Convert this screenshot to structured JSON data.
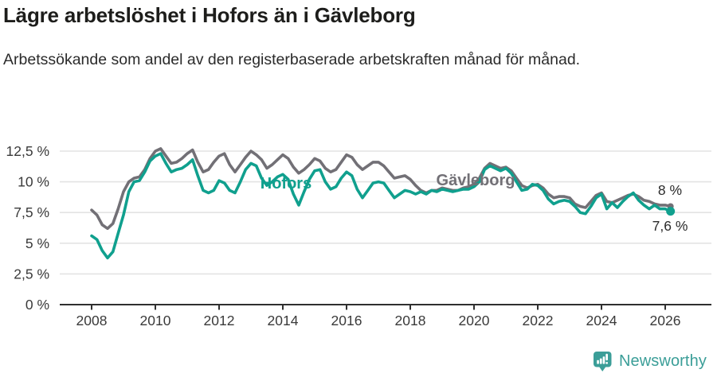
{
  "header": {
    "title": "Lägre arbetslöshet i Hofors än i Gävleborg",
    "subtitle": "Arbetssökande som andel av den registerbaserade arbetskraften månad för månad."
  },
  "colors": {
    "hofors": "#10a08e",
    "gavleborg": "#727076",
    "grid": "#e3e3e3",
    "axis": "#2f2f2f",
    "tick_text": "#3a3a3a",
    "annotation_dark": "#2b2b2b",
    "logo": "#3b9e98"
  },
  "chart_data": {
    "type": "line",
    "title": "Lägre arbetslöshet i Hofors än i Gävleborg",
    "xlabel": "",
    "ylabel": "",
    "unit": "%",
    "x_start_year": 2008,
    "x_step_years": 0.166667,
    "x_ticks": [
      2008,
      2010,
      2012,
      2014,
      2016,
      2018,
      2020,
      2022,
      2024,
      2026
    ],
    "y_ticks": [
      {
        "value": 0,
        "label": "0 %"
      },
      {
        "value": 2.5,
        "label": "2,5 %"
      },
      {
        "value": 5,
        "label": "5 %"
      },
      {
        "value": 7.5,
        "label": "7,5 %"
      },
      {
        "value": 10,
        "label": "10 %"
      },
      {
        "value": 12.5,
        "label": "12,5 %"
      }
    ],
    "ylim": [
      0,
      13.2
    ],
    "grid": true,
    "legend_position": "inline-labels",
    "series": [
      {
        "name": "Gävleborg",
        "color_key": "gavleborg",
        "end_label": "8 %",
        "end_dot_radius": 4,
        "values": [
          7.7,
          7.3,
          6.5,
          6.2,
          6.6,
          7.8,
          9.2,
          10.0,
          10.3,
          10.4,
          11.0,
          11.9,
          12.5,
          12.7,
          12.1,
          11.5,
          11.6,
          11.9,
          12.3,
          12.6,
          11.6,
          10.8,
          11.0,
          11.6,
          12.1,
          12.3,
          11.4,
          10.8,
          11.4,
          12.0,
          12.5,
          12.2,
          11.8,
          11.1,
          11.4,
          11.8,
          12.2,
          11.9,
          11.2,
          10.7,
          11.0,
          11.4,
          11.9,
          11.7,
          11.1,
          10.8,
          11.0,
          11.6,
          12.2,
          12.0,
          11.4,
          11.0,
          11.3,
          11.6,
          11.6,
          11.3,
          10.8,
          10.3,
          10.4,
          10.5,
          10.2,
          9.7,
          9.3,
          9.1,
          9.3,
          9.3,
          9.5,
          9.4,
          9.3,
          9.3,
          9.5,
          9.6,
          9.8,
          10.3,
          11.1,
          11.5,
          11.3,
          11.1,
          11.2,
          10.9,
          10.3,
          9.7,
          9.5,
          9.7,
          9.8,
          9.5,
          9.0,
          8.7,
          8.8,
          8.8,
          8.7,
          8.2,
          8.0,
          7.9,
          8.4,
          8.9,
          9.1,
          8.4,
          8.3,
          8.5,
          8.7,
          8.9,
          9.0,
          8.8,
          8.5,
          8.4,
          8.2,
          8.1,
          8.1,
          8.0
        ]
      },
      {
        "name": "Hofors",
        "color_key": "hofors",
        "end_label": "7,6 %",
        "end_dot_radius": 5.5,
        "values": [
          5.6,
          5.3,
          4.4,
          3.8,
          4.3,
          5.8,
          7.3,
          9.2,
          10.0,
          10.1,
          10.8,
          11.7,
          12.1,
          12.3,
          11.5,
          10.8,
          11.0,
          11.1,
          11.4,
          11.8,
          10.5,
          9.3,
          9.1,
          9.3,
          10.1,
          9.9,
          9.3,
          9.1,
          10.0,
          11.0,
          11.5,
          11.3,
          10.3,
          9.7,
          10.0,
          10.4,
          10.6,
          10.2,
          9.0,
          8.1,
          9.2,
          10.2,
          10.9,
          11.0,
          10.0,
          9.4,
          9.6,
          10.3,
          10.8,
          10.5,
          9.4,
          8.7,
          9.3,
          9.9,
          10.0,
          9.9,
          9.3,
          8.7,
          9.0,
          9.3,
          9.2,
          9.0,
          9.2,
          9.0,
          9.3,
          9.2,
          9.4,
          9.3,
          9.2,
          9.3,
          9.4,
          9.4,
          9.6,
          10.0,
          11.0,
          11.3,
          11.1,
          10.9,
          11.1,
          10.7,
          10.0,
          9.3,
          9.4,
          9.8,
          9.7,
          9.3,
          8.6,
          8.2,
          8.4,
          8.5,
          8.4,
          8.0,
          7.5,
          7.4,
          8.0,
          8.7,
          9.0,
          7.8,
          8.3,
          7.9,
          8.4,
          8.8,
          9.1,
          8.5,
          8.1,
          7.8,
          8.1,
          7.8,
          7.8,
          7.6
        ]
      }
    ],
    "annotations": [
      {
        "id": "series-label-hofors",
        "text": "Hofors",
        "year": 2014.1,
        "value": 9.85,
        "color_key": "hofors",
        "bold": true,
        "size": 20
      },
      {
        "id": "series-label-gavleborg",
        "text": "Gävleborg",
        "year": 2020.05,
        "value": 10.1,
        "color_key": "gavleborg",
        "bold": true,
        "size": 20
      },
      {
        "id": "end-value-label-gavleborg",
        "text": "8 %",
        "year": 2026.15,
        "value": 9.33,
        "color_key": "annotation_dark",
        "bold": false,
        "size": 17.5
      },
      {
        "id": "end-value-label-hofors",
        "text": "7,6 %",
        "year": 2026.15,
        "value": 6.4,
        "color_key": "annotation_dark",
        "bold": false,
        "size": 17.5
      }
    ]
  },
  "footer": {
    "brand": "Newsworthy",
    "logo_icon": "speech-bubble-bar-chart-exclamation"
  }
}
